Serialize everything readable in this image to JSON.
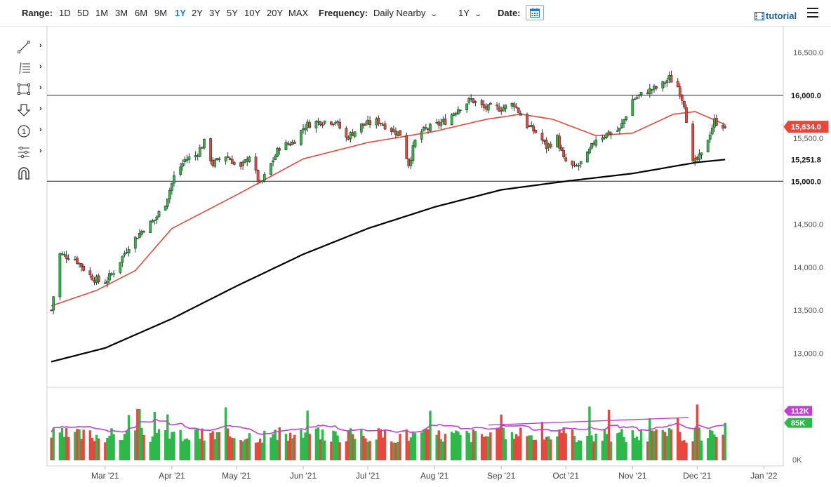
{
  "toolbar": {
    "range_label": "Range:",
    "ranges": [
      "1D",
      "5D",
      "1M",
      "3M",
      "6M",
      "9M",
      "1Y",
      "2Y",
      "3Y",
      "5Y",
      "10Y",
      "20Y",
      "MAX"
    ],
    "active_range": "1Y",
    "frequency_label": "Frequency:",
    "frequency_value": "Daily Nearby",
    "period_value": "1Y",
    "date_label": "Date:",
    "tutorial_label": "tutorial"
  },
  "left_tools": [
    "line-tool-icon",
    "fibonacci-tool-icon",
    "rectangle-tool-icon",
    "arrow-down-tool-icon",
    "number-marker-tool-icon",
    "measure-tool-icon",
    "magnet-tool-icon"
  ],
  "colors": {
    "up": "#2db84a",
    "down": "#e8473e",
    "candle_outline": "#222222",
    "ma50": "#e8473e",
    "ma200": "#000000",
    "volume_avg": "#c23fd6",
    "volume_trend": "#c23fd6",
    "last_price_badge": "#e8473e",
    "vol_badge_high": "#c23fd6",
    "vol_badge_low": "#2db84a",
    "accent": "#1a7bd0"
  },
  "chart_data": {
    "type": "candlestick",
    "ylim": [
      12700,
      16700
    ],
    "price_ticks": [
      13000,
      13500,
      14000,
      14500,
      15000,
      15500,
      16000,
      16500
    ],
    "price_tick_labels": [
      "13,000.0",
      "13,500.0",
      "14,000.0",
      "14,500.0",
      "15,000.0",
      "15,500.0",
      "16,000.0",
      "16,500.0"
    ],
    "x_labels": [
      "Mar '21",
      "Apr '21",
      "May '21",
      "Jun '21",
      "Jul '21",
      "Aug '21",
      "Sep '21",
      "Oct '21",
      "Nov '21",
      "Dec '21",
      "Jan '22"
    ],
    "x_label_dates": [
      "2021-03-01",
      "2021-04-01",
      "2021-05-01",
      "2021-06-01",
      "2021-07-01",
      "2021-08-01",
      "2021-09-01",
      "2021-10-01",
      "2021-11-01",
      "2021-12-01",
      "2022-01-01"
    ],
    "horizontal_lines": [
      {
        "value": 16000,
        "label": "16,000.0"
      },
      {
        "value": 15000,
        "label": "15,000.0"
      }
    ],
    "last_price": {
      "value": 15634,
      "label": "15,634.0"
    },
    "ma_200_last": {
      "value": 15251.8,
      "label": "15,251.8"
    },
    "series_anchors": {
      "price": [
        [
          "2021-02-04",
          13500
        ],
        [
          "2021-02-08",
          14150
        ],
        [
          "2021-02-15",
          14100
        ],
        [
          "2021-02-22",
          13900
        ],
        [
          "2021-02-28",
          13800
        ],
        [
          "2021-03-05",
          13950
        ],
        [
          "2021-03-12",
          14250
        ],
        [
          "2021-03-19",
          14450
        ],
        [
          "2021-03-24",
          14550
        ],
        [
          "2021-03-29",
          14750
        ],
        [
          "2021-04-02",
          15050
        ],
        [
          "2021-04-07",
          15250
        ],
        [
          "2021-04-12",
          15300
        ],
        [
          "2021-04-16",
          15450
        ],
        [
          "2021-04-20",
          15200
        ],
        [
          "2021-04-26",
          15300
        ],
        [
          "2021-05-03",
          15150
        ],
        [
          "2021-05-07",
          15300
        ],
        [
          "2021-05-12",
          14950
        ],
        [
          "2021-05-17",
          15200
        ],
        [
          "2021-05-21",
          15400
        ],
        [
          "2021-05-27",
          15450
        ],
        [
          "2021-06-02",
          15650
        ],
        [
          "2021-06-09",
          15700
        ],
        [
          "2021-06-16",
          15700
        ],
        [
          "2021-06-21",
          15500
        ],
        [
          "2021-06-28",
          15650
        ],
        [
          "2021-07-06",
          15700
        ],
        [
          "2021-07-12",
          15600
        ],
        [
          "2021-07-16",
          15550
        ],
        [
          "2021-07-20",
          15200
        ],
        [
          "2021-07-24",
          15550
        ],
        [
          "2021-07-28",
          15600
        ],
        [
          "2021-08-06",
          15700
        ],
        [
          "2021-08-12",
          15850
        ],
        [
          "2021-08-18",
          15950
        ],
        [
          "2021-08-24",
          15850
        ],
        [
          "2021-09-01",
          15850
        ],
        [
          "2021-09-07",
          15900
        ],
        [
          "2021-09-13",
          15650
        ],
        [
          "2021-09-18",
          15550
        ],
        [
          "2021-09-22",
          15400
        ],
        [
          "2021-09-27",
          15500
        ],
        [
          "2021-09-30",
          15250
        ],
        [
          "2021-10-05",
          15150
        ],
        [
          "2021-10-10",
          15250
        ],
        [
          "2021-10-15",
          15500
        ],
        [
          "2021-10-20",
          15550
        ],
        [
          "2021-10-26",
          15600
        ],
        [
          "2021-11-01",
          15950
        ],
        [
          "2021-11-08",
          16050
        ],
        [
          "2021-11-14",
          16100
        ],
        [
          "2021-11-18",
          16200
        ],
        [
          "2021-11-22",
          16100
        ],
        [
          "2021-11-25",
          15900
        ],
        [
          "2021-11-29",
          15200
        ],
        [
          "2021-12-03",
          15300
        ],
        [
          "2021-12-06",
          15500
        ],
        [
          "2021-12-09",
          15700
        ],
        [
          "2021-12-14",
          15634
        ]
      ],
      "ma50": [
        [
          "2021-02-04",
          13550
        ],
        [
          "2021-02-25",
          13730
        ],
        [
          "2021-03-15",
          13960
        ],
        [
          "2021-04-01",
          14450
        ],
        [
          "2021-05-01",
          14840
        ],
        [
          "2021-06-01",
          15260
        ],
        [
          "2021-07-01",
          15450
        ],
        [
          "2021-08-01",
          15580
        ],
        [
          "2021-08-25",
          15720
        ],
        [
          "2021-09-10",
          15780
        ],
        [
          "2021-09-25",
          15720
        ],
        [
          "2021-10-15",
          15530
        ],
        [
          "2021-11-01",
          15560
        ],
        [
          "2021-11-20",
          15780
        ],
        [
          "2021-11-30",
          15810
        ],
        [
          "2021-12-14",
          15660
        ]
      ],
      "ma200": [
        [
          "2021-02-04",
          12900
        ],
        [
          "2021-03-01",
          13060
        ],
        [
          "2021-04-01",
          13400
        ],
        [
          "2021-05-01",
          13780
        ],
        [
          "2021-06-01",
          14150
        ],
        [
          "2021-07-01",
          14450
        ],
        [
          "2021-08-01",
          14700
        ],
        [
          "2021-09-01",
          14900
        ],
        [
          "2021-10-01",
          15000
        ],
        [
          "2021-11-01",
          15090
        ],
        [
          "2021-12-01",
          15220
        ],
        [
          "2021-12-14",
          15251.8
        ]
      ]
    },
    "volume": {
      "axis_zero_label": "0K",
      "high_label": "112K",
      "low_label": "85K",
      "high_value": 112,
      "low_value": 85,
      "trendline": [
        [
          "2021-08-26",
          80
        ],
        [
          "2021-11-27",
          97
        ]
      ]
    }
  }
}
